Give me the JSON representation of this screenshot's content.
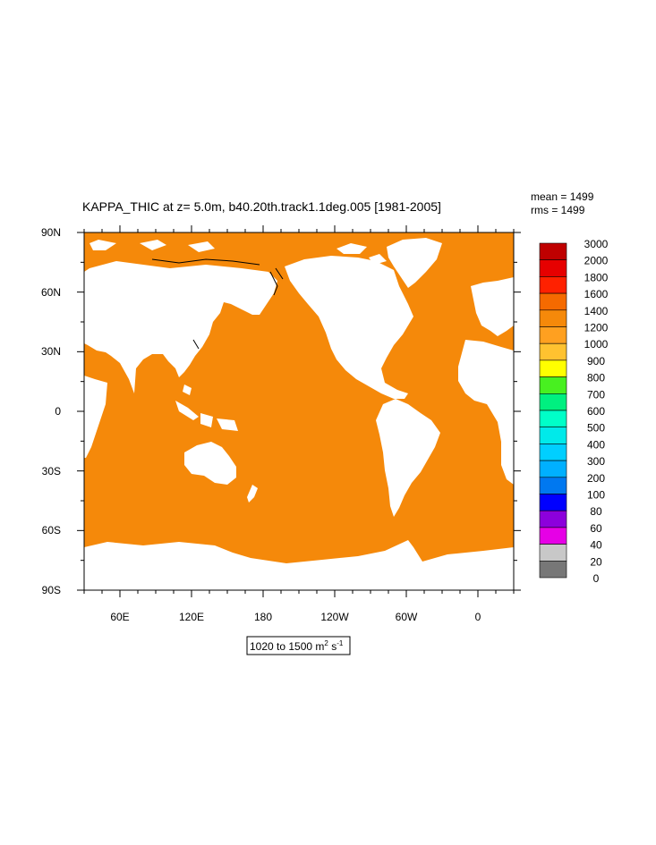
{
  "title": "KAPPA_THIC at z=   5.0m, b40.20th.track1.1deg.005 [1981-2005]",
  "stats": {
    "mean": "mean = 1499",
    "rms": "rms = 1499"
  },
  "range_label": {
    "prefix": "1020 to 1500 m",
    "exp1": "2",
    "mid": " s",
    "exp2": "-1"
  },
  "colors": {
    "ocean": "#f5890a",
    "land": "#ffffff",
    "coast": "#000000"
  },
  "chart_data": {
    "type": "heatmap",
    "projection": "cylindrical equidistant, central longitude 210E",
    "field_value_range": [
      1020,
      1500
    ],
    "map_color": "#f5890a",
    "lon_ticks": [
      "60E",
      "120E",
      "180",
      "120W",
      "60W",
      "0"
    ],
    "lat_ticks": [
      "90N",
      "60N",
      "30N",
      "0",
      "30S",
      "60S",
      "90S"
    ],
    "colorbar": {
      "labels": [
        "3000",
        "2000",
        "1800",
        "1600",
        "1400",
        "1200",
        "1000",
        "900",
        "800",
        "700",
        "600",
        "500",
        "400",
        "300",
        "200",
        "100",
        "80",
        "60",
        "40",
        "20",
        "0"
      ],
      "colors": [
        "#bf0000",
        "#e60000",
        "#ff2100",
        "#f56a00",
        "#f5890a",
        "#ffa020",
        "#ffc230",
        "#ffff00",
        "#48f020",
        "#00f080",
        "#00ffc8",
        "#00eaea",
        "#00cfff",
        "#00b0ff",
        "#0078f0",
        "#0000ff",
        "#8c00dc",
        "#e600e6",
        "#c8c8c8",
        "#777777"
      ]
    }
  }
}
